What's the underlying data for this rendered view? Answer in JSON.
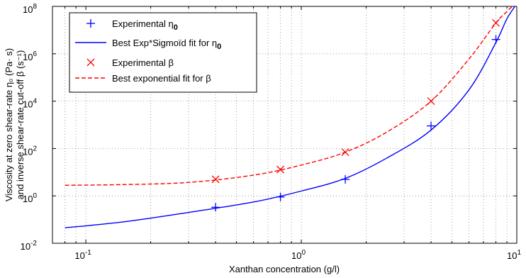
{
  "chart_data": {
    "type": "line",
    "xscale": "log",
    "yscale": "log",
    "xlim": [
      0.07,
      10
    ],
    "ylim": [
      0.01,
      100000000
    ],
    "grid": true,
    "legend_position": "top-left",
    "xlabel": "Xanthan concentration (g/l)",
    "ylabel_line1": "Viscosity at zero shear-rate η₀ (Pa· s)",
    "ylabel_line2": "and inverse shear-rate cut-off  β (s⁻¹)",
    "x_ticks": [
      {
        "value": 0.1,
        "base": "10",
        "exp": "-1"
      },
      {
        "value": 1,
        "base": "10",
        "exp": "0"
      },
      {
        "value": 10,
        "base": "10",
        "exp": "1"
      }
    ],
    "y_ticks": [
      {
        "value": 0.01,
        "base": "10",
        "exp": "-2"
      },
      {
        "value": 1,
        "base": "10",
        "exp": "0"
      },
      {
        "value": 100,
        "base": "10",
        "exp": "2"
      },
      {
        "value": 10000,
        "base": "10",
        "exp": "4"
      },
      {
        "value": 1000000,
        "base": "10",
        "exp": "6"
      },
      {
        "value": 100000000,
        "base": "10",
        "exp": "8"
      }
    ],
    "series": [
      {
        "name": "Experimental η₀",
        "style": "marker-plus",
        "color": "#0000ff",
        "x": [
          0.4,
          0.8,
          1.6,
          4.0,
          8.0
        ],
        "y": [
          0.33,
          0.9,
          5.0,
          900,
          4000000
        ]
      },
      {
        "name": "Best Exp*Sigmoïd fit for η₀",
        "style": "solid-line",
        "color": "#0000ff",
        "x": [
          0.08,
          0.15,
          0.3,
          0.6,
          1.0,
          1.6,
          2.5,
          4.0,
          6.0,
          8.0,
          9.0,
          10.0
        ],
        "y": [
          0.045,
          0.08,
          0.2,
          0.55,
          1.6,
          5.5,
          40,
          600,
          30000,
          3000000,
          30000000,
          130000000
        ]
      },
      {
        "name": "Experimental β",
        "style": "marker-x",
        "color": "#ff0000",
        "x": [
          0.4,
          0.8,
          1.6,
          4.0,
          8.0
        ],
        "y": [
          5.0,
          13,
          70,
          10000,
          20000000
        ]
      },
      {
        "name": "Best exponential fit for β",
        "style": "dashed-line",
        "color": "#ff0000",
        "x": [
          0.08,
          0.15,
          0.3,
          0.6,
          1.0,
          1.6,
          2.5,
          4.0,
          6.0,
          8.0,
          9.0,
          9.8
        ],
        "y": [
          2.8,
          3.0,
          3.7,
          7.5,
          20,
          70,
          500,
          10000,
          600000,
          20000000,
          60000000,
          130000000
        ]
      }
    ],
    "legend": [
      {
        "label": "Experimental η",
        "sub": "0",
        "series": 0
      },
      {
        "label": "Best Exp*Sigmoïd fit for η",
        "sub": "0",
        "series": 1
      },
      {
        "label": "Experimental β",
        "sub": "",
        "series": 2
      },
      {
        "label": "Best exponential fit for β",
        "sub": "",
        "series": 3
      }
    ]
  }
}
